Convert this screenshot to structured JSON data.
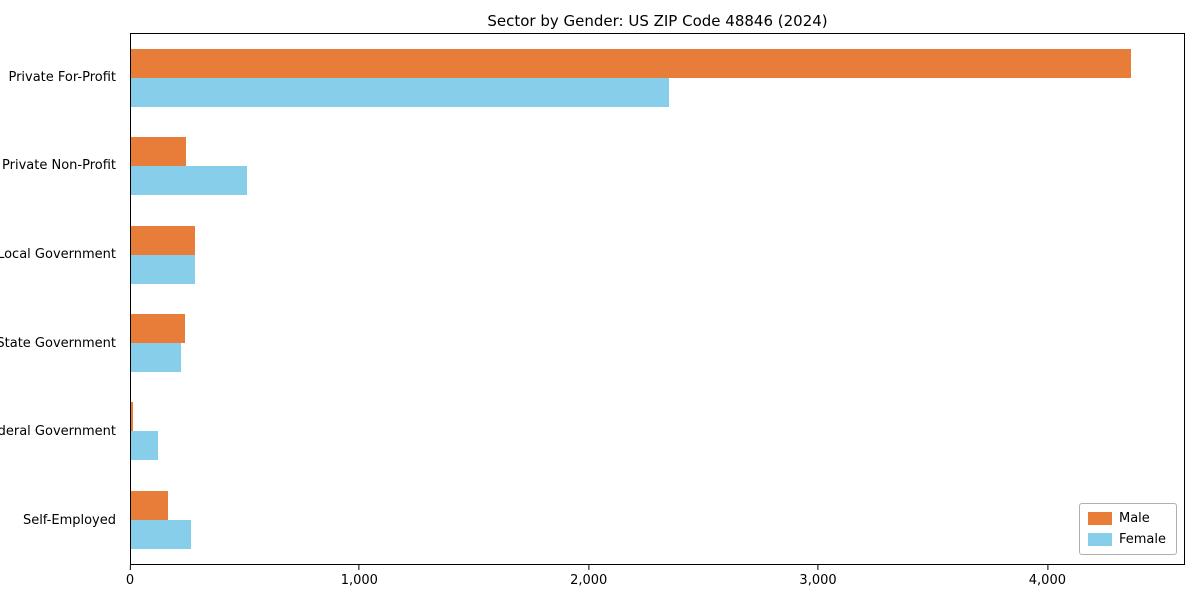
{
  "chart_data": {
    "type": "bar",
    "orientation": "horizontal",
    "title": "Sector by Gender: US ZIP Code 48846 (2024)",
    "categories": [
      "Private For-Profit",
      "Private Non-Profit",
      "Local Government",
      "State Government",
      "Federal Government",
      "Self-Employed"
    ],
    "series": [
      {
        "name": "Male",
        "values": [
          4370,
          240,
          280,
          235,
          8,
          160
        ]
      },
      {
        "name": "Female",
        "values": [
          2350,
          505,
          280,
          220,
          120,
          260
        ]
      }
    ],
    "colors": {
      "male": "#e87d3a",
      "female": "#87ceeb"
    },
    "xlabel": "",
    "ylabel": "",
    "xlim": [
      0,
      4600
    ],
    "xticks": [
      {
        "value": 0,
        "label": "0"
      },
      {
        "value": 1000,
        "label": "1,000"
      },
      {
        "value": 2000,
        "label": "2,000"
      },
      {
        "value": 3000,
        "label": "3,000"
      },
      {
        "value": 4000,
        "label": "4,000"
      }
    ],
    "grid": false,
    "legend_position": "lower right"
  }
}
